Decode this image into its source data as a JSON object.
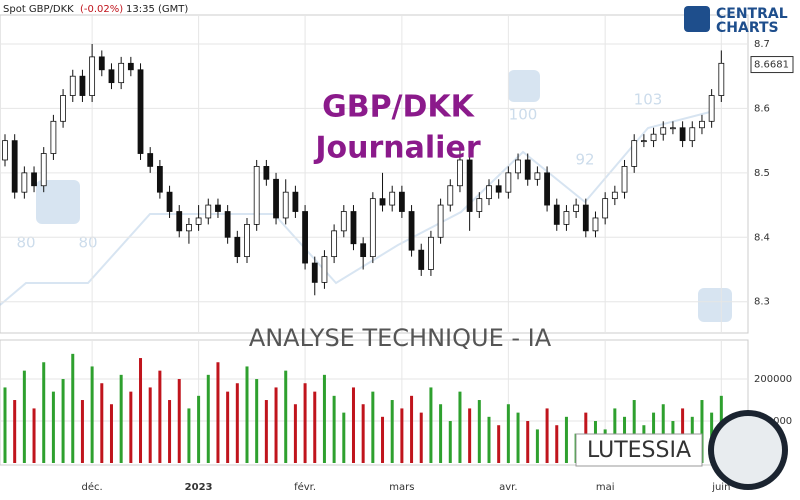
{
  "header": {
    "symbol": "Spot GBP/DKK",
    "change": "(-0.02%)",
    "time": "13:35 (GMT)"
  },
  "logo": {
    "line1": "CENTRAL",
    "line2": "CHARTS"
  },
  "overlay": {
    "title": "GBP/DKK",
    "subtitle": "Journalier",
    "banner": "ANALYSE TECHNIQUE - IA",
    "brand": "LUTESSIA",
    "watermark_labels": [
      "80",
      "80",
      "100",
      "92",
      "103"
    ]
  },
  "chart_data": [
    {
      "type": "candlestick",
      "up_color": "#ffffff",
      "down_color": "#111111",
      "wick_color": "#111111",
      "open": [
        8.52,
        8.55,
        8.47,
        8.5,
        8.48,
        8.53,
        8.58,
        8.62,
        8.65,
        8.62,
        8.68,
        8.66,
        8.64,
        8.67,
        8.66,
        8.53,
        8.51,
        8.47,
        8.44,
        8.41,
        8.42,
        8.43,
        8.45,
        8.44,
        8.4,
        8.37,
        8.42,
        8.51,
        8.49,
        8.43,
        8.47,
        8.44,
        8.36,
        8.33,
        8.37,
        8.41,
        8.44,
        8.39,
        8.37,
        8.46,
        8.45,
        8.47,
        8.44,
        8.38,
        8.35,
        8.4,
        8.45,
        8.48,
        8.52,
        8.44,
        8.46,
        8.48,
        8.47,
        8.5,
        8.52,
        8.49,
        8.5,
        8.45,
        8.42,
        8.44,
        8.45,
        8.41,
        8.43,
        8.46,
        8.47,
        8.51,
        8.55,
        8.55,
        8.56,
        8.57,
        8.57,
        8.55,
        8.57,
        8.58,
        8.62
      ],
      "high": [
        8.56,
        8.56,
        8.51,
        8.51,
        8.54,
        8.59,
        8.63,
        8.66,
        8.66,
        8.7,
        8.69,
        8.67,
        8.68,
        8.68,
        8.67,
        8.54,
        8.52,
        8.48,
        8.45,
        8.43,
        8.45,
        8.46,
        8.46,
        8.45,
        8.41,
        8.43,
        8.52,
        8.52,
        8.5,
        8.49,
        8.48,
        8.45,
        8.37,
        8.38,
        8.42,
        8.45,
        8.45,
        8.4,
        8.47,
        8.5,
        8.48,
        8.48,
        8.45,
        8.39,
        8.41,
        8.46,
        8.49,
        8.54,
        8.53,
        8.47,
        8.49,
        8.49,
        8.51,
        8.53,
        8.53,
        8.51,
        8.51,
        8.46,
        8.45,
        8.46,
        8.46,
        8.44,
        8.47,
        8.48,
        8.52,
        8.56,
        8.56,
        8.57,
        8.58,
        8.58,
        8.58,
        8.58,
        8.59,
        8.63,
        8.69
      ],
      "low": [
        8.51,
        8.46,
        8.46,
        8.47,
        8.47,
        8.52,
        8.57,
        8.61,
        8.61,
        8.61,
        8.65,
        8.63,
        8.63,
        8.65,
        8.52,
        8.5,
        8.46,
        8.43,
        8.4,
        8.39,
        8.41,
        8.42,
        8.43,
        8.39,
        8.36,
        8.36,
        8.41,
        8.48,
        8.42,
        8.42,
        8.43,
        8.35,
        8.31,
        8.32,
        8.36,
        8.4,
        8.38,
        8.35,
        8.36,
        8.44,
        8.44,
        8.43,
        8.37,
        8.34,
        8.34,
        8.39,
        8.44,
        8.47,
        8.41,
        8.43,
        8.45,
        8.46,
        8.46,
        8.49,
        8.48,
        8.48,
        8.44,
        8.41,
        8.41,
        8.43,
        8.4,
        8.4,
        8.42,
        8.45,
        8.46,
        8.5,
        8.54,
        8.54,
        8.55,
        8.56,
        8.54,
        8.54,
        8.56,
        8.57,
        8.61
      ],
      "close": [
        8.55,
        8.47,
        8.5,
        8.48,
        8.53,
        8.58,
        8.62,
        8.65,
        8.62,
        8.68,
        8.66,
        8.64,
        8.67,
        8.66,
        8.53,
        8.51,
        8.47,
        8.44,
        8.41,
        8.42,
        8.43,
        8.45,
        8.44,
        8.4,
        8.37,
        8.42,
        8.51,
        8.49,
        8.43,
        8.47,
        8.44,
        8.36,
        8.33,
        8.37,
        8.41,
        8.44,
        8.39,
        8.37,
        8.46,
        8.45,
        8.47,
        8.44,
        8.38,
        8.35,
        8.4,
        8.45,
        8.48,
        8.52,
        8.44,
        8.46,
        8.48,
        8.47,
        8.5,
        8.52,
        8.49,
        8.5,
        8.45,
        8.42,
        8.44,
        8.45,
        8.41,
        8.43,
        8.46,
        8.47,
        8.51,
        8.55,
        8.55,
        8.56,
        8.57,
        8.57,
        8.55,
        8.57,
        8.58,
        8.62,
        8.67
      ],
      "last_price": 8.6681,
      "last_price_label": "8.6681",
      "ylim": [
        8.253,
        8.745
      ],
      "yticks": [
        8.3,
        8.4,
        8.5,
        8.6,
        8.7
      ],
      "grid": true
    },
    {
      "type": "bar",
      "up_color": "#2ea02e",
      "down_color": "#c0141c",
      "values": [
        180000,
        150000,
        220000,
        130000,
        240000,
        170000,
        200000,
        260000,
        150000,
        230000,
        190000,
        140000,
        210000,
        170000,
        250000,
        180000,
        220000,
        150000,
        200000,
        130000,
        160000,
        210000,
        240000,
        170000,
        190000,
        230000,
        200000,
        150000,
        180000,
        220000,
        140000,
        190000,
        170000,
        210000,
        160000,
        120000,
        180000,
        140000,
        170000,
        110000,
        150000,
        130000,
        160000,
        120000,
        180000,
        140000,
        100000,
        170000,
        130000,
        150000,
        110000,
        90000,
        140000,
        120000,
        100000,
        80000,
        130000,
        90000,
        110000,
        70000,
        120000,
        100000,
        80000,
        130000,
        110000,
        150000,
        90000,
        120000,
        140000,
        100000,
        130000,
        110000,
        150000,
        120000,
        160000
      ],
      "ylim": [
        0,
        293000
      ],
      "yticks": [
        100000,
        200000
      ],
      "grid": true,
      "xticks": [
        {
          "value": 9,
          "label": "déc."
        },
        {
          "value": 20,
          "label": "2023"
        },
        {
          "value": 31,
          "label": "févr."
        },
        {
          "value": 41,
          "label": "mars"
        },
        {
          "value": 52,
          "label": "avr."
        },
        {
          "value": 62,
          "label": "mai"
        },
        {
          "value": 74,
          "label": "juin"
        }
      ]
    }
  ]
}
